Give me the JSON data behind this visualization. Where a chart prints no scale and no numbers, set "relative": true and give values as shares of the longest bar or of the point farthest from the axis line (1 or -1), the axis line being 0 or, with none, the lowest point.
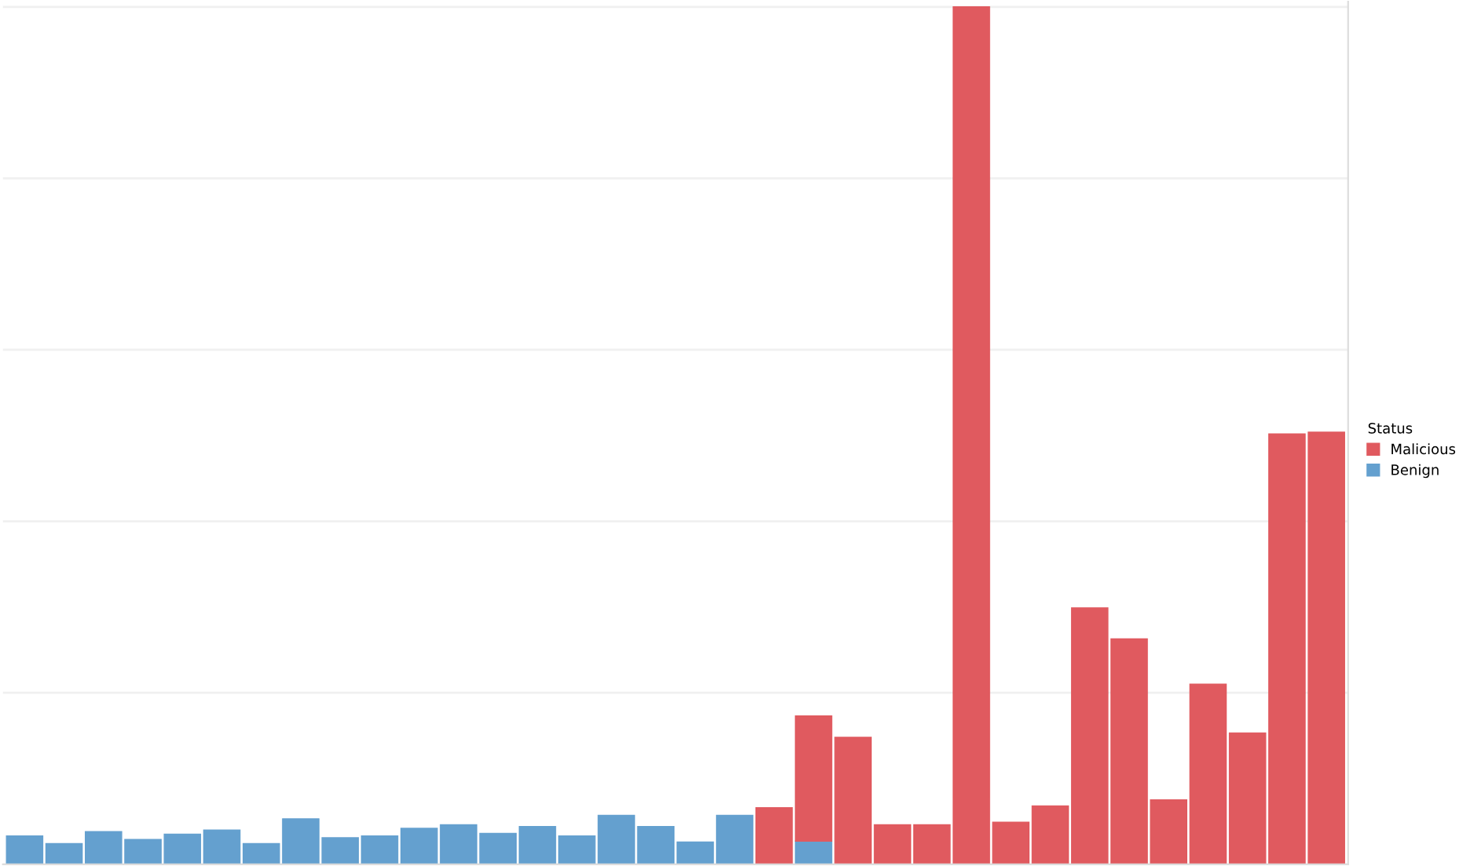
{
  "chart_data": {
    "type": "bar",
    "stacked": true,
    "relative": true,
    "legend_title": "Status",
    "legend": "right",
    "grid": "y",
    "categories": [
      null,
      null,
      null,
      null,
      null,
      null,
      null,
      null,
      null,
      null,
      null,
      null,
      null,
      null,
      null,
      null,
      null,
      null,
      null,
      null,
      null,
      null,
      null,
      null,
      null,
      null,
      null,
      null,
      null,
      null,
      null,
      null,
      null,
      null
    ],
    "series": [
      {
        "name": "Benign",
        "color": "#64a0cf",
        "values": [
          0.033,
          0.024,
          0.038,
          0.029,
          0.035,
          0.04,
          0.024,
          0.053,
          0.031,
          0.033,
          0.042,
          0.046,
          0.036,
          0.044,
          0.033,
          0.057,
          0.044,
          0.026,
          0.057,
          null,
          0.027,
          null,
          null,
          null,
          null,
          null,
          null,
          null,
          null,
          null,
          null,
          null,
          null,
          null
        ]
      },
      {
        "name": "Malicious",
        "color": "#e05a5f",
        "values": [
          null,
          null,
          null,
          null,
          null,
          null,
          null,
          null,
          null,
          null,
          null,
          null,
          null,
          null,
          null,
          null,
          null,
          null,
          null,
          0.066,
          0.146,
          0.148,
          0.046,
          0.046,
          1,
          0.049,
          0.068,
          0.299,
          0.263,
          0.075,
          0.21,
          0.153,
          0.502,
          0.504
        ]
      }
    ]
  }
}
